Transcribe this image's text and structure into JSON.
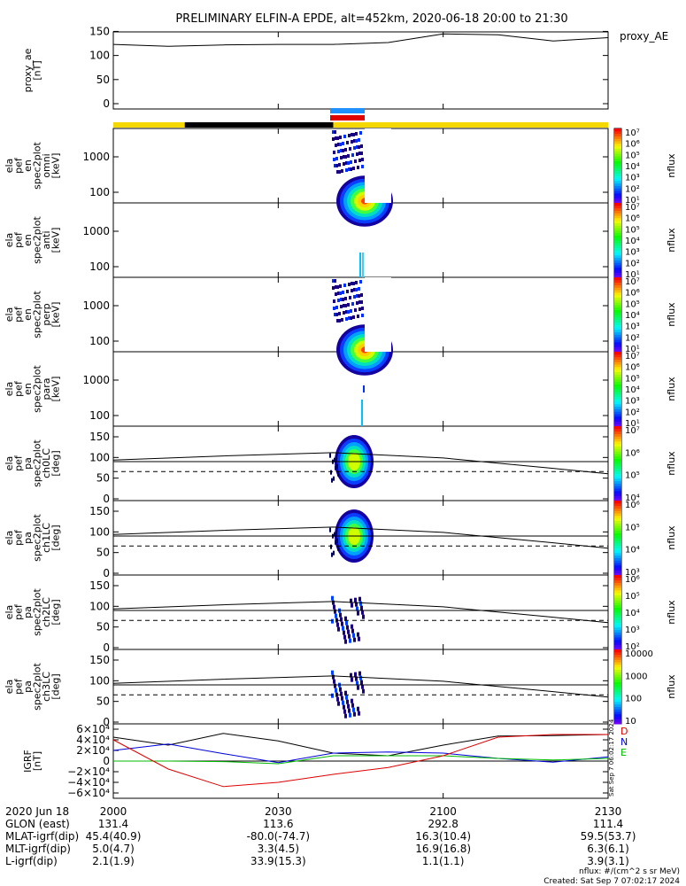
{
  "title": "PRELIMINARY ELFIN-A EPDE, alt=452km, 2020-06-18 20:00 to 21:30",
  "colors": {
    "yellow": "#f5d800",
    "black": "#000000",
    "blue": "#1e90ff",
    "red": "#e00000",
    "bx": "#e00000",
    "by": "#0000dd",
    "bz": "#00bb00"
  },
  "panels": {
    "proxy_ae": {
      "ylabel_lines": [
        "proxy_ae",
        "[nT]"
      ],
      "legend": "proxy_AE",
      "yticks": [
        "0",
        "50",
        "100",
        "150"
      ]
    },
    "spectra": [
      {
        "ylabel_lines": [
          "ela",
          "pef",
          "en",
          "spec2plot",
          "omni",
          "[keV]"
        ],
        "cbar_label": "nflux",
        "yticks": [
          "100",
          "1000"
        ],
        "cticks": [
          "10¹",
          "10²",
          "10³",
          "10⁴",
          "10⁵",
          "10⁶",
          "10⁷"
        ]
      },
      {
        "ylabel_lines": [
          "ela",
          "pef",
          "en",
          "spec2plot",
          "anti",
          "[keV]"
        ],
        "cbar_label": "nflux",
        "yticks": [
          "100",
          "1000"
        ],
        "cticks": [
          "10¹",
          "10²",
          "10³",
          "10⁴",
          "10⁵",
          "10⁶",
          "10⁷"
        ]
      },
      {
        "ylabel_lines": [
          "ela",
          "pef",
          "en",
          "spec2plot",
          "perp",
          "[keV]"
        ],
        "cbar_label": "nflux",
        "yticks": [
          "100",
          "1000"
        ],
        "cticks": [
          "10¹",
          "10²",
          "10³",
          "10⁴",
          "10⁵",
          "10⁶",
          "10⁷"
        ]
      },
      {
        "ylabel_lines": [
          "ela",
          "pef",
          "en",
          "spec2plot",
          "para",
          "[keV]"
        ],
        "cbar_label": "nflux",
        "yticks": [
          "100",
          "1000"
        ],
        "cticks": [
          "10¹",
          "10²",
          "10³",
          "10⁴",
          "10⁵",
          "10⁶",
          "10⁷"
        ]
      }
    ],
    "pitch": [
      {
        "ylabel_lines": [
          "ela",
          "pef",
          "pa",
          "spec2plot",
          "ch0LC",
          "[deg]"
        ],
        "cbar_label": "nflux",
        "yticks": [
          "0",
          "50",
          "100",
          "150"
        ],
        "cticks": [
          "10⁴",
          "10⁵",
          "10⁶",
          "10⁷"
        ]
      },
      {
        "ylabel_lines": [
          "ela",
          "pef",
          "pa",
          "spec2plot",
          "ch1LC",
          "[deg]"
        ],
        "cbar_label": "nflux",
        "yticks": [
          "0",
          "50",
          "100",
          "150"
        ],
        "cticks": [
          "10³",
          "10⁴",
          "10⁵",
          "10⁶"
        ]
      },
      {
        "ylabel_lines": [
          "ela",
          "pef",
          "pa",
          "spec2plot",
          "ch2LC",
          "[deg]"
        ],
        "cbar_label": "nflux",
        "yticks": [
          "0",
          "50",
          "100",
          "150"
        ],
        "cticks": [
          "10²",
          "10³",
          "10⁴",
          "10⁵",
          "10⁶"
        ]
      },
      {
        "ylabel_lines": [
          "ela",
          "pef",
          "pa",
          "spec2plot",
          "ch3LC",
          "[deg]"
        ],
        "cbar_label": "nflux",
        "yticks": [
          "0",
          "50",
          "100",
          "150"
        ],
        "cticks": [
          "10",
          "100",
          "1000",
          "10000"
        ]
      }
    ],
    "igrf": {
      "ylabel_lines": [
        "IGRF",
        "[nT]"
      ],
      "yticks": [
        "−6×10⁴",
        "−4×10⁴",
        "−2×10⁴",
        "0",
        "2×10⁴",
        "4×10⁴",
        "6×10⁴"
      ],
      "legend": [
        "D",
        "N",
        "E"
      ],
      "stamp": "Sat Sep 7 06:02:17 2024"
    }
  },
  "chart_data": {
    "type": "line",
    "x_range": [
      "20:00",
      "21:30"
    ],
    "proxy_ae": {
      "x_min": [
        0,
        10,
        20,
        30,
        40,
        50,
        60,
        70,
        80,
        90
      ],
      "values": [
        126,
        122,
        125,
        126,
        126,
        130,
        148,
        146,
        133,
        140
      ],
      "ylim": [
        0,
        160
      ]
    },
    "pitch_lines": {
      "x_min": [
        0,
        20,
        40,
        60,
        80,
        90
      ],
      "upper": [
        100,
        110,
        118,
        105,
        80,
        67
      ],
      "solid_ref": 90,
      "dashed_ref": 66,
      "ylim": [
        0,
        180
      ]
    },
    "igrf": {
      "x_min": [
        0,
        10,
        20,
        30,
        40,
        50,
        60,
        70,
        80,
        90
      ],
      "black": [
        45000,
        30000,
        52000,
        38000,
        15000,
        10000,
        30000,
        47000,
        48000,
        50000
      ],
      "blue": [
        20000,
        32000,
        14000,
        -3000,
        15000,
        17000,
        15000,
        5000,
        -2000,
        8000
      ],
      "green": [
        0,
        0,
        -1000,
        -5000,
        10000,
        10000,
        10000,
        5000,
        2000,
        5000
      ],
      "red": [
        40000,
        -15000,
        -48000,
        -40000,
        -25000,
        -12000,
        10000,
        45000,
        50000,
        50000
      ],
      "ylim": [
        -70000,
        70000
      ]
    }
  },
  "ephemeris": {
    "date_label": "2020 Jun 18",
    "time_ticks": [
      "2000",
      "2030",
      "2100",
      "2130"
    ],
    "rows": [
      {
        "label": "GLON (east)",
        "values": [
          "131.4",
          "113.6",
          "292.8",
          "111.4"
        ]
      },
      {
        "label": "MLAT-igrf(dip)",
        "values": [
          "45.4(40.9)",
          "-80.0(-74.7)",
          "16.3(10.4)",
          "59.5(53.7)"
        ]
      },
      {
        "label": "MLT-igrf(dip)",
        "values": [
          "5.0(4.7)",
          "3.3(4.5)",
          "16.9(16.8)",
          "6.3(6.1)"
        ]
      },
      {
        "label": "L-igrf(dip)",
        "values": [
          "2.1(1.9)",
          "33.9(15.3)",
          "1.1(1.1)",
          "3.9(3.1)"
        ]
      }
    ]
  },
  "footer": {
    "units": "nflux: #/(cm^2 s sr MeV)",
    "created": "Created: Sat Sep  7 07:02:17 2024"
  }
}
